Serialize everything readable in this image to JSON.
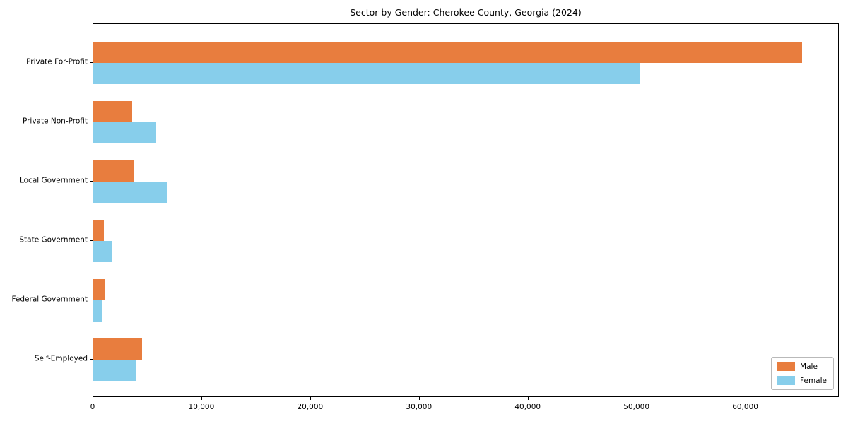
{
  "chart_data": {
    "type": "bar",
    "orientation": "horizontal",
    "title": "Sector by Gender: Cherokee County, Georgia (2024)",
    "xlabel": "",
    "ylabel": "",
    "categories": [
      "Private For-Profit",
      "Private Non-Profit",
      "Local Government",
      "State Government",
      "Federal Government",
      "Self-Employed"
    ],
    "series": [
      {
        "name": "Male",
        "color": "#e87d3e",
        "values": [
          65300,
          3600,
          3800,
          1000,
          1100,
          4500
        ]
      },
      {
        "name": "Female",
        "color": "#87ceeb",
        "values": [
          50300,
          5800,
          6800,
          1700,
          800,
          4000
        ]
      }
    ],
    "xlim": [
      0,
      68600
    ],
    "xticks": [
      0,
      10000,
      20000,
      30000,
      40000,
      50000,
      60000
    ],
    "xtick_labels": [
      "0",
      "10,000",
      "20,000",
      "30,000",
      "40,000",
      "50,000",
      "60,000"
    ],
    "grid": false,
    "legend": {
      "position": "lower right",
      "entries": [
        "Male",
        "Female"
      ]
    }
  }
}
